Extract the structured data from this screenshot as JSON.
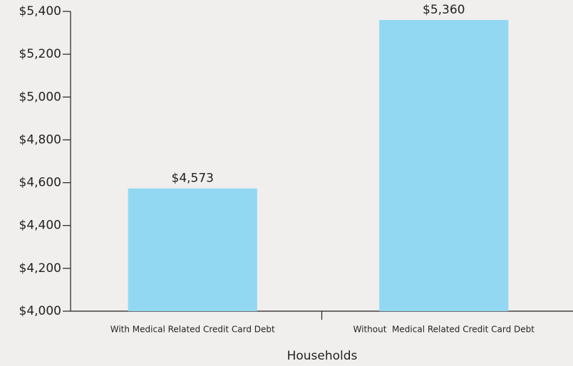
{
  "chart_data": {
    "type": "bar",
    "categories": [
      "With Medical Related Credit Card Debt",
      "Without  Medical Related Credit Card Debt"
    ],
    "values": [
      4573,
      5360
    ],
    "value_labels": [
      "$4,573",
      "$5,360"
    ],
    "color": "#92d8f2",
    "x_label": "Households",
    "ylim": [
      4000,
      5400
    ],
    "yticks": [
      {
        "value": 4000,
        "label": "$4,000"
      },
      {
        "value": 4200,
        "label": "$4,200"
      },
      {
        "value": 4400,
        "label": "$4,400"
      },
      {
        "value": 4600,
        "label": "$4,600"
      },
      {
        "value": 4800,
        "label": "$4,800"
      },
      {
        "value": 5000,
        "label": "$5,000"
      },
      {
        "value": 5200,
        "label": "$5,200"
      },
      {
        "value": 5400,
        "label": "$5,400"
      }
    ],
    "grid": false
  }
}
